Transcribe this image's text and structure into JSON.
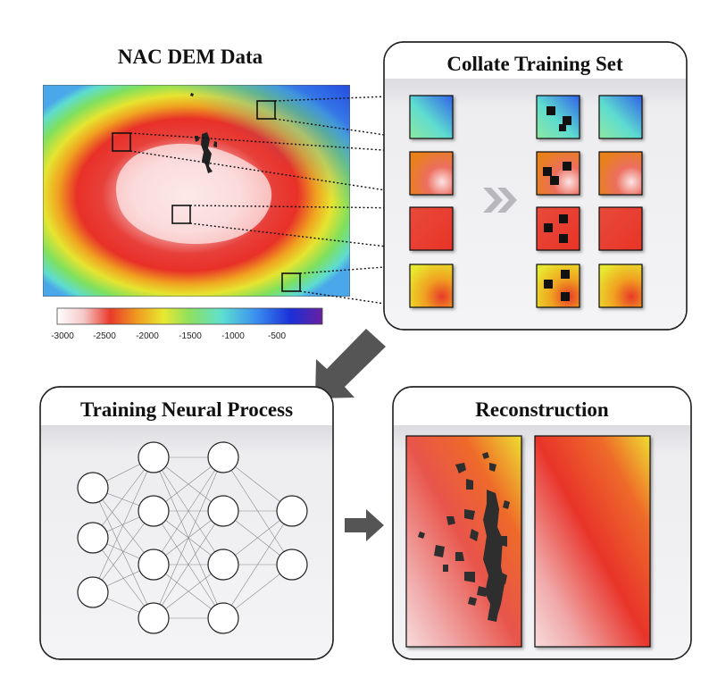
{
  "titles": {
    "dem": "NAC DEM Data",
    "collate": "Collate Training Set",
    "training": "Training Neural Process",
    "reconstruction": "Reconstruction"
  },
  "colorbar": {
    "ticks": [
      "-3000",
      "-2500",
      "-2000",
      "-1500",
      "-1000",
      "-500"
    ],
    "colors": [
      "#ffffff",
      "#f07878",
      "#e83a2a",
      "#f0a020",
      "#e8e830",
      "#7ee05a",
      "#5ee0d0",
      "#3a8ef0",
      "#1a30d8",
      "#6a20a0"
    ]
  },
  "network": {
    "layers": [
      3,
      4,
      4,
      2
    ]
  },
  "icons": {
    "forward_arrows": "double-chevron-right-icon",
    "down_arrow": "arrow-down-left-icon",
    "right_arrow": "arrow-right-icon"
  }
}
